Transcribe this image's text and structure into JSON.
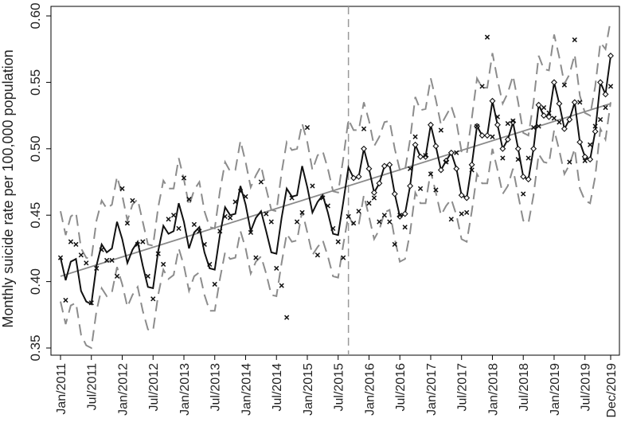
{
  "chart_data": {
    "type": "line",
    "title": "",
    "xlabel": "",
    "ylabel": "Monthly suicide rate per 100,000 population",
    "ylim": [
      0.35,
      0.6
    ],
    "yticks": [
      0.35,
      0.4,
      0.45,
      0.5,
      0.55,
      0.6
    ],
    "ytick_labels": [
      "0.35",
      "0.40",
      "0.45",
      "0.50",
      "0.55",
      "0.60"
    ],
    "xlim": [
      0,
      107
    ],
    "xticks": [
      {
        "index": 0,
        "label": "Jan/2011"
      },
      {
        "index": 6,
        "label": "Jul/2011"
      },
      {
        "index": 12,
        "label": "Jan/2012"
      },
      {
        "index": 18,
        "label": "Jul/2012"
      },
      {
        "index": 24,
        "label": "Jan/2013"
      },
      {
        "index": 30,
        "label": "Jul/2013"
      },
      {
        "index": 36,
        "label": "Jan/2014"
      },
      {
        "index": 42,
        "label": "Jul/2014"
      },
      {
        "index": 48,
        "label": "Jan/2015"
      },
      {
        "index": 54,
        "label": "Jul/2015"
      },
      {
        "index": 60,
        "label": "Jan/2016"
      },
      {
        "index": 66,
        "label": "Jul/2016"
      },
      {
        "index": 72,
        "label": "Jan/2017"
      },
      {
        "index": 78,
        "label": "Jul/2017"
      },
      {
        "index": 84,
        "label": "Jan/2018"
      },
      {
        "index": 90,
        "label": "Jul/2018"
      },
      {
        "index": 96,
        "label": "Jan/2019"
      },
      {
        "index": 102,
        "label": "Jul/2019"
      },
      {
        "index": 107,
        "label": "Dec/2019"
      }
    ],
    "cutoff_index": 56,
    "trend": {
      "start": 0.404,
      "end": 0.534
    },
    "fitted": [
      0.418,
      0.401,
      0.415,
      0.417,
      0.393,
      0.385,
      0.383,
      0.412,
      0.428,
      0.422,
      0.425,
      0.445,
      0.432,
      0.414,
      0.424,
      0.43,
      0.412,
      0.396,
      0.395,
      0.423,
      0.442,
      0.436,
      0.438,
      0.459,
      0.445,
      0.425,
      0.437,
      0.441,
      0.422,
      0.41,
      0.409,
      0.435,
      0.456,
      0.45,
      0.451,
      0.472,
      0.458,
      0.438,
      0.448,
      0.453,
      0.438,
      0.422,
      0.421,
      0.448,
      0.47,
      0.464,
      0.465,
      0.487,
      0.471,
      0.452,
      0.46,
      0.465,
      0.452,
      0.436,
      0.435,
      0.46,
      0.486,
      0.478,
      0.479,
      0.5,
      0.485,
      0.467,
      0.474,
      0.487,
      0.488,
      0.466,
      0.449,
      0.451,
      0.472,
      0.503,
      0.494,
      0.494,
      0.518,
      0.502,
      0.484,
      0.491,
      0.497,
      0.485,
      0.465,
      0.463,
      0.488,
      0.517,
      0.51,
      0.51,
      0.536,
      0.518,
      0.5,
      0.507,
      0.52,
      0.5,
      0.479,
      0.477,
      0.5,
      0.533,
      0.525,
      0.524,
      0.55,
      0.534,
      0.515,
      0.522,
      0.535,
      0.505,
      0.494,
      0.492,
      0.513,
      0.55,
      0.541,
      0.57
    ],
    "upper": [
      0.453,
      0.435,
      0.449,
      0.452,
      0.425,
      0.418,
      0.417,
      0.446,
      0.461,
      0.455,
      0.458,
      0.479,
      0.465,
      0.446,
      0.458,
      0.462,
      0.445,
      0.428,
      0.427,
      0.456,
      0.476,
      0.47,
      0.47,
      0.493,
      0.477,
      0.457,
      0.469,
      0.475,
      0.453,
      0.441,
      0.44,
      0.468,
      0.49,
      0.483,
      0.484,
      0.506,
      0.49,
      0.471,
      0.48,
      0.487,
      0.47,
      0.454,
      0.453,
      0.482,
      0.505,
      0.499,
      0.5,
      0.519,
      0.505,
      0.484,
      0.495,
      0.498,
      0.485,
      0.468,
      0.467,
      0.493,
      0.522,
      0.514,
      0.514,
      0.535,
      0.521,
      0.502,
      0.509,
      0.52,
      0.521,
      0.5,
      0.484,
      0.484,
      0.507,
      0.539,
      0.529,
      0.53,
      0.553,
      0.537,
      0.518,
      0.525,
      0.532,
      0.52,
      0.498,
      0.496,
      0.523,
      0.553,
      0.546,
      0.546,
      0.572,
      0.552,
      0.534,
      0.542,
      0.555,
      0.535,
      0.512,
      0.51,
      0.535,
      0.57,
      0.56,
      0.559,
      0.586,
      0.569,
      0.549,
      0.556,
      0.571,
      0.54,
      0.527,
      0.525,
      0.547,
      0.58,
      0.575,
      0.597
    ],
    "lower": [
      0.385,
      0.368,
      0.382,
      0.384,
      0.36,
      0.352,
      0.35,
      0.378,
      0.395,
      0.389,
      0.392,
      0.411,
      0.398,
      0.381,
      0.39,
      0.396,
      0.378,
      0.364,
      0.363,
      0.39,
      0.409,
      0.402,
      0.405,
      0.425,
      0.412,
      0.393,
      0.404,
      0.407,
      0.39,
      0.378,
      0.378,
      0.402,
      0.422,
      0.417,
      0.418,
      0.438,
      0.425,
      0.406,
      0.415,
      0.419,
      0.406,
      0.39,
      0.389,
      0.414,
      0.436,
      0.43,
      0.431,
      0.453,
      0.437,
      0.42,
      0.426,
      0.431,
      0.419,
      0.404,
      0.403,
      0.428,
      0.45,
      0.442,
      0.443,
      0.465,
      0.449,
      0.432,
      0.439,
      0.452,
      0.454,
      0.432,
      0.415,
      0.417,
      0.437,
      0.467,
      0.459,
      0.459,
      0.483,
      0.467,
      0.45,
      0.457,
      0.462,
      0.45,
      0.432,
      0.43,
      0.453,
      0.481,
      0.474,
      0.474,
      0.5,
      0.484,
      0.466,
      0.472,
      0.485,
      0.465,
      0.446,
      0.444,
      0.465,
      0.496,
      0.49,
      0.489,
      0.514,
      0.499,
      0.481,
      0.488,
      0.5,
      0.47,
      0.461,
      0.459,
      0.479,
      0.515,
      0.507,
      0.535
    ],
    "observed": [
      [
        0,
        0.418
      ],
      [
        1,
        0.386
      ],
      [
        2,
        0.43
      ],
      [
        3,
        0.428
      ],
      [
        4,
        0.42
      ],
      [
        5,
        0.414
      ],
      [
        6,
        0.384
      ],
      [
        7,
        0.41
      ],
      [
        8,
        0.424
      ],
      [
        9,
        0.416
      ],
      [
        10,
        0.416
      ],
      [
        11,
        0.404
      ],
      [
        12,
        0.47
      ],
      [
        13,
        0.444
      ],
      [
        14,
        0.461
      ],
      [
        15,
        0.428
      ],
      [
        16,
        0.43
      ],
      [
        17,
        0.404
      ],
      [
        18,
        0.387
      ],
      [
        19,
        0.421
      ],
      [
        20,
        0.413
      ],
      [
        21,
        0.447
      ],
      [
        22,
        0.45
      ],
      [
        23,
        0.44
      ],
      [
        24,
        0.478
      ],
      [
        25,
        0.462
      ],
      [
        26,
        0.443
      ],
      [
        27,
        0.438
      ],
      [
        28,
        0.428
      ],
      [
        29,
        0.413
      ],
      [
        30,
        0.398
      ],
      [
        31,
        0.438
      ],
      [
        32,
        0.449
      ],
      [
        33,
        0.448
      ],
      [
        34,
        0.46
      ],
      [
        35,
        0.468
      ],
      [
        36,
        0.464
      ],
      [
        37,
        0.437
      ],
      [
        38,
        0.418
      ],
      [
        39,
        0.475
      ],
      [
        40,
        0.451
      ],
      [
        41,
        0.445
      ],
      [
        42,
        0.41
      ],
      [
        43,
        0.397
      ],
      [
        44,
        0.373
      ],
      [
        45,
        0.463
      ],
      [
        46,
        0.445
      ],
      [
        47,
        0.452
      ],
      [
        48,
        0.516
      ],
      [
        49,
        0.472
      ],
      [
        50,
        0.42
      ],
      [
        51,
        0.463
      ],
      [
        52,
        0.457
      ],
      [
        53,
        0.44
      ],
      [
        54,
        0.43
      ],
      [
        55,
        0.418
      ],
      [
        56,
        0.449
      ],
      [
        57,
        0.444
      ],
      [
        58,
        0.453
      ],
      [
        59,
        0.515
      ],
      [
        60,
        0.459
      ],
      [
        61,
        0.463
      ],
      [
        62,
        0.445
      ],
      [
        63,
        0.45
      ],
      [
        64,
        0.445
      ],
      [
        65,
        0.428
      ],
      [
        66,
        0.45
      ],
      [
        67,
        0.441
      ],
      [
        68,
        0.485
      ],
      [
        69,
        0.509
      ],
      [
        70,
        0.47
      ],
      [
        71,
        0.495
      ],
      [
        72,
        0.481
      ],
      [
        73,
        0.469
      ],
      [
        74,
        0.514
      ],
      [
        75,
        0.49
      ],
      [
        76,
        0.447
      ],
      [
        77,
        0.497
      ],
      [
        78,
        0.451
      ],
      [
        79,
        0.452
      ],
      [
        80,
        0.484
      ],
      [
        81,
        0.517
      ],
      [
        82,
        0.547
      ],
      [
        83,
        0.584
      ],
      [
        84,
        0.509
      ],
      [
        85,
        0.524
      ],
      [
        86,
        0.493
      ],
      [
        87,
        0.519
      ],
      [
        88,
        0.521
      ],
      [
        89,
        0.492
      ],
      [
        90,
        0.466
      ],
      [
        91,
        0.493
      ],
      [
        92,
        0.516
      ],
      [
        93,
        0.517
      ],
      [
        94,
        0.531
      ],
      [
        95,
        0.527
      ],
      [
        96,
        0.523
      ],
      [
        97,
        0.52
      ],
      [
        98,
        0.548
      ],
      [
        99,
        0.49
      ],
      [
        100,
        0.582
      ],
      [
        101,
        0.535
      ],
      [
        102,
        0.491
      ],
      [
        103,
        0.503
      ],
      [
        104,
        0.517
      ],
      [
        105,
        0.522
      ],
      [
        106,
        0.531
      ],
      [
        107,
        0.547
      ]
    ],
    "marker_from_index": 57
  }
}
